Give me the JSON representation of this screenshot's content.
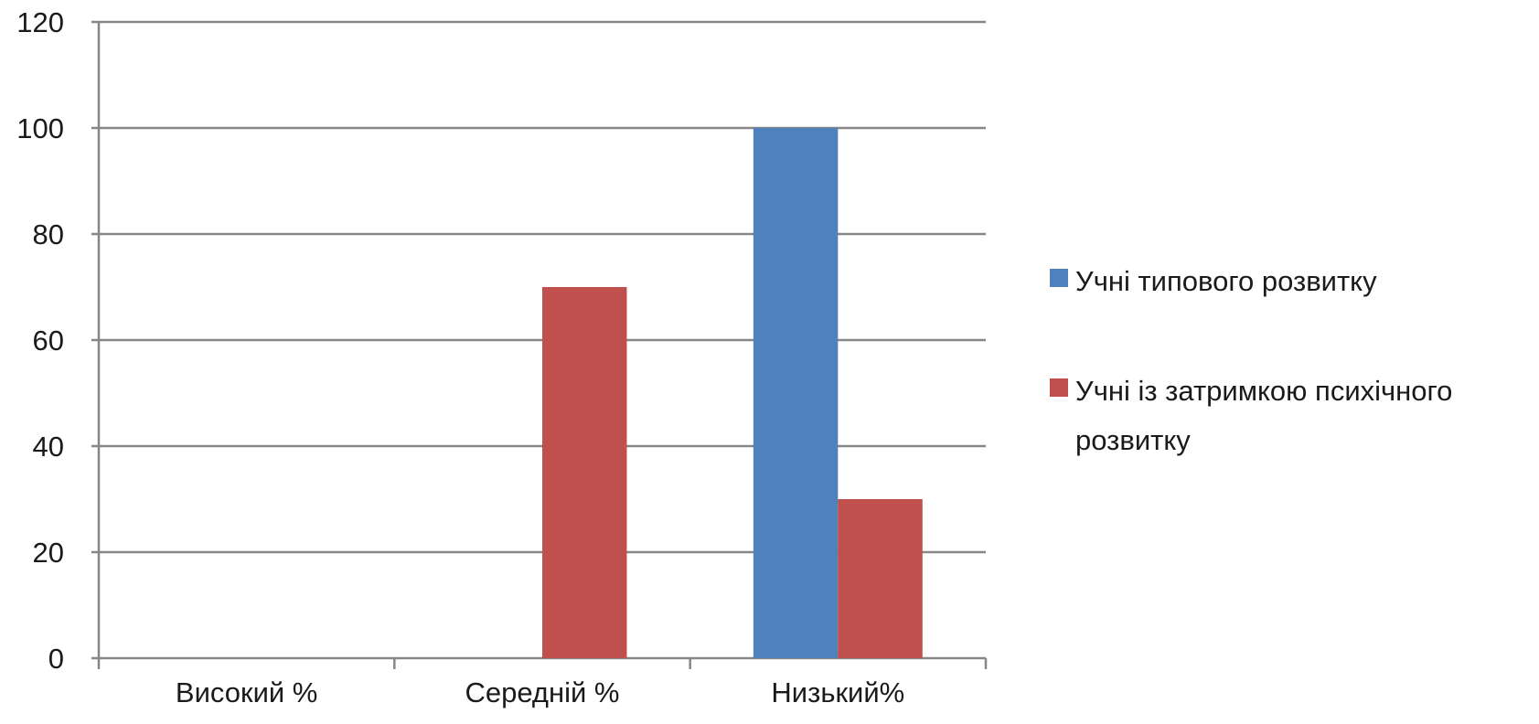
{
  "chart_data": {
    "type": "bar",
    "categories": [
      "Високий %",
      "Середній %",
      "Низький%"
    ],
    "series": [
      {
        "name": "Учні типового розвитку",
        "values": [
          0,
          0,
          100
        ],
        "color": "#4f81bd"
      },
      {
        "name": "Учні із затримкою психічного розвитку",
        "values": [
          0,
          70,
          30
        ],
        "color": "#c0504d"
      }
    ],
    "ylim": [
      0,
      120
    ],
    "yticks": [
      0,
      20,
      40,
      60,
      80,
      100,
      120
    ],
    "grid": true,
    "legend_position": "right",
    "title": "",
    "xlabel": "",
    "ylabel": ""
  }
}
